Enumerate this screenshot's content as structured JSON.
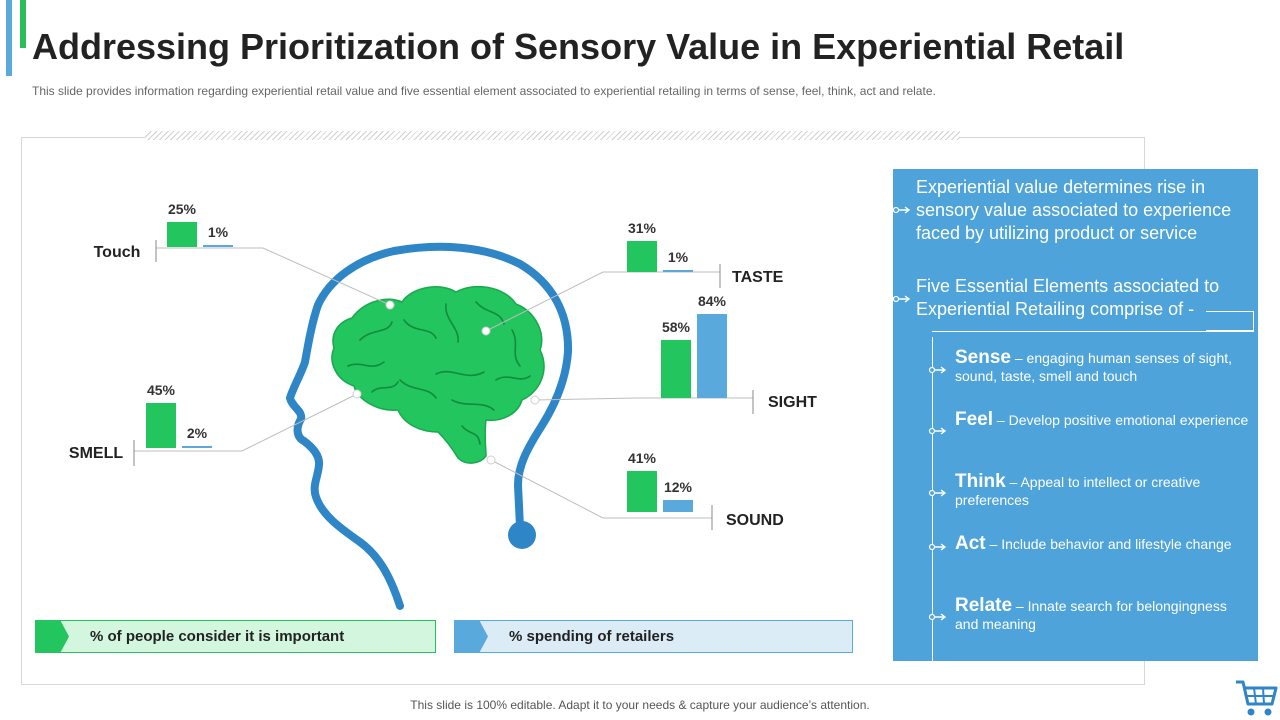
{
  "header": {
    "title": "Addressing Prioritization of Sensory Value in Experiential Retail",
    "subtitle": "This slide provides information regarding experiential retail value and five essential element associated to experiential retailing in terms of sense, feel, think, act and relate."
  },
  "colors": {
    "green": "#22c55e",
    "blue": "#5aa9dd",
    "panel_blue": "#4ea3da",
    "head_outline": "#2f86c6"
  },
  "chart_data": {
    "type": "bar",
    "categories": [
      "Touch",
      "TASTE",
      "SIGHT",
      "SMELL",
      "SOUND"
    ],
    "series": [
      {
        "name": "% of people consider it is important",
        "values": [
          25,
          31,
          58,
          45,
          41
        ]
      },
      {
        "name": "% spending of retailers",
        "values": [
          1,
          1,
          84,
          2,
          12
        ]
      }
    ],
    "data_labels": {
      "Touch": [
        "25%",
        "1%"
      ],
      "TASTE": [
        "31%",
        "1%"
      ],
      "SIGHT": [
        "58%",
        "84%"
      ],
      "SMELL": [
        "45%",
        "2%"
      ],
      "SOUND": [
        "41%",
        "12%"
      ]
    },
    "legend": [
      "% of people consider it is important",
      "% spending of retailers"
    ],
    "legend_placement": "bottom",
    "ylim": [
      0,
      100
    ],
    "grid": false
  },
  "panel": {
    "intro": "Experiential value determines rise in sensory value associated to experience faced by utilizing product or service",
    "lead": "Five Essential Elements associated to Experiential Retailing comprise of -",
    "elements": [
      {
        "name": "Sense",
        "desc": " – engaging human senses of sight, sound, taste, smell and touch"
      },
      {
        "name": "Feel",
        "desc": " – Develop positive emotional experience"
      },
      {
        "name": "Think",
        "desc": " – Appeal to intellect or creative preferences"
      },
      {
        "name": "Act",
        "desc": " – Include behavior and lifestyle change"
      },
      {
        "name": "Relate",
        "desc": " – Innate search for belongingness and meaning"
      }
    ]
  },
  "footer": {
    "text": "This slide is 100% editable. Adapt it to your needs & capture your audience’s attention."
  },
  "icons": {
    "brain": "brain-icon",
    "head": "head-profile-icon",
    "cart": "shopping-cart-icon"
  }
}
